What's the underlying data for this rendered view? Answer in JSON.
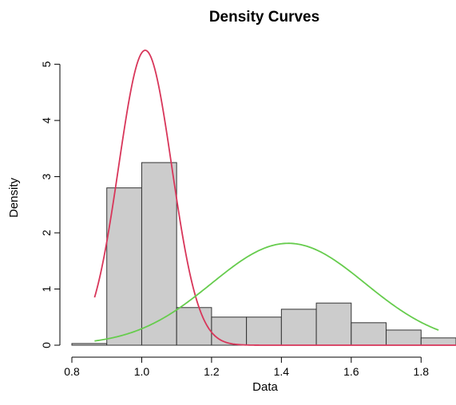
{
  "chart_data": {
    "type": "histogram",
    "title": "Density Curves",
    "xlabel": "Data",
    "ylabel": "Density",
    "xlim": [
      0.8,
      1.9
    ],
    "ylim": [
      0,
      5.25
    ],
    "x_ticks": [
      0.8,
      1.0,
      1.2,
      1.4,
      1.6,
      1.8
    ],
    "x_tick_labels": [
      "0.8",
      "1.0",
      "1.2",
      "1.4",
      "1.6",
      "1.8"
    ],
    "y_ticks": [
      0,
      1,
      2,
      3,
      4,
      5
    ],
    "y_tick_labels": [
      "0",
      "1",
      "2",
      "3",
      "4",
      "5"
    ],
    "grid": false,
    "bin_edges": [
      0.8,
      0.9,
      1.0,
      1.1,
      1.2,
      1.3,
      1.4,
      1.5,
      1.6,
      1.7,
      1.8,
      1.9
    ],
    "bin_values": [
      0.03,
      2.8,
      3.25,
      0.67,
      0.5,
      0.5,
      0.64,
      0.75,
      0.4,
      0.27,
      0.13
    ],
    "curves": [
      {
        "distribution": "normal",
        "mean": 1.01,
        "sd": 0.076,
        "color": "#d8365a",
        "x_range": [
          0.865,
          1.9
        ]
      },
      {
        "distribution": "normal",
        "mean": 1.42,
        "sd": 0.22,
        "color": "#66cc4d",
        "x_range": [
          0.865,
          1.85
        ]
      }
    ]
  }
}
